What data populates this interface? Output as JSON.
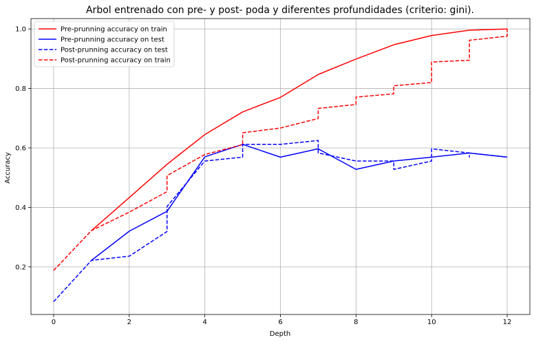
{
  "chart_data": {
    "type": "line",
    "title": "Arbol entrenado con pre- y post- poda y diferentes profundidades (criterio: gini).",
    "xlabel": "Depth",
    "ylabel": "Accuracy",
    "xlim": [
      -0.6,
      12.6
    ],
    "ylim": [
      0.04,
      1.035
    ],
    "xticks": [
      0,
      2,
      4,
      6,
      8,
      10,
      12
    ],
    "xtick_labels": [
      "0",
      "2",
      "4",
      "6",
      "8",
      "10",
      "12"
    ],
    "yticks": [
      0.2,
      0.4,
      0.6,
      0.8,
      1.0
    ],
    "ytick_labels": [
      "0.2",
      "0.4",
      "0.6",
      "0.8",
      "1.0"
    ],
    "grid": true,
    "legend_position": "top-left",
    "series": [
      {
        "name": "Pre-prunning accuracy on train",
        "color": "#ff0000",
        "dash": "solid",
        "points": [
          [
            1,
            0.322
          ],
          [
            2,
            0.433
          ],
          [
            3,
            0.545
          ],
          [
            4,
            0.645
          ],
          [
            5,
            0.721
          ],
          [
            6,
            0.77
          ],
          [
            7,
            0.847
          ],
          [
            8,
            0.899
          ],
          [
            9,
            0.947
          ],
          [
            10,
            0.978
          ],
          [
            11,
            0.996
          ],
          [
            12,
            1.0
          ]
        ]
      },
      {
        "name": "Pre-prunning accuracy on test",
        "color": "#0000ff",
        "dash": "solid",
        "points": [
          [
            1,
            0.222
          ],
          [
            2,
            0.32
          ],
          [
            3,
            0.387
          ],
          [
            4,
            0.57
          ],
          [
            5,
            0.612
          ],
          [
            6,
            0.569
          ],
          [
            7,
            0.597
          ],
          [
            8,
            0.528
          ],
          [
            9,
            0.556
          ],
          [
            10,
            0.569
          ],
          [
            11,
            0.583
          ],
          [
            12,
            0.569
          ]
        ]
      },
      {
        "name": "Post-prunning accuracy on test",
        "color": "#0000ff",
        "dash": "dashed",
        "points": [
          [
            0,
            0.083
          ],
          [
            1,
            0.222
          ],
          [
            2,
            0.236
          ],
          [
            3,
            0.319
          ],
          [
            3,
            0.403
          ],
          [
            4,
            0.556
          ],
          [
            5,
            0.569
          ],
          [
            5,
            0.612
          ],
          [
            6,
            0.612
          ],
          [
            7,
            0.625
          ],
          [
            7,
            0.583
          ],
          [
            8,
            0.556
          ],
          [
            9,
            0.556
          ],
          [
            9,
            0.528
          ],
          [
            10,
            0.556
          ],
          [
            10,
            0.597
          ],
          [
            11,
            0.583
          ],
          [
            11,
            0.569
          ],
          [
            11,
            0.583
          ],
          [
            12,
            0.569
          ]
        ]
      },
      {
        "name": "Post-prunning accuracy on train",
        "color": "#ff0000",
        "dash": "dashed",
        "points": [
          [
            0,
            0.188
          ],
          [
            1,
            0.322
          ],
          [
            2,
            0.384
          ],
          [
            3,
            0.453
          ],
          [
            3,
            0.507
          ],
          [
            4,
            0.578
          ],
          [
            5,
            0.611
          ],
          [
            5,
            0.651
          ],
          [
            6,
            0.667
          ],
          [
            7,
            0.699
          ],
          [
            7,
            0.733
          ],
          [
            8,
            0.746
          ],
          [
            8,
            0.771
          ],
          [
            9,
            0.782
          ],
          [
            9,
            0.809
          ],
          [
            10,
            0.82
          ],
          [
            10,
            0.889
          ],
          [
            11,
            0.895
          ],
          [
            11,
            0.962
          ],
          [
            12,
            0.976
          ],
          [
            12,
            1.0
          ]
        ]
      }
    ]
  }
}
